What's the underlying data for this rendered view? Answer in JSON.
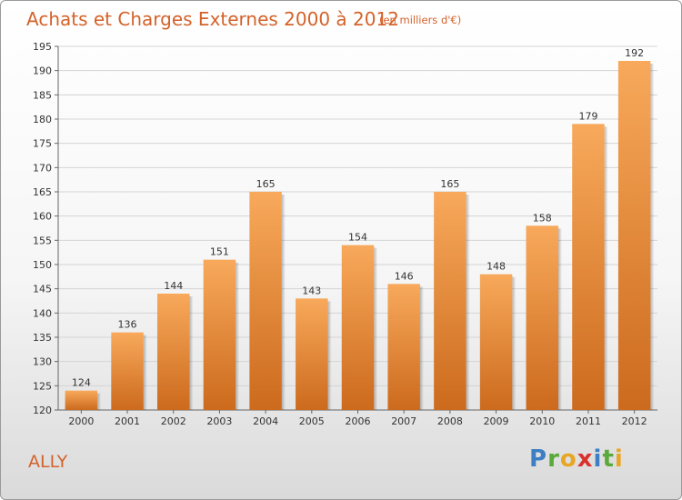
{
  "title": "Achats et Charges Externes 2000 à 2012",
  "subtitle": "(en milliers d'€)",
  "commune": "ALLY",
  "logo": {
    "letters": [
      "P",
      "r",
      "o",
      "x",
      "i",
      "t",
      "i"
    ],
    "colors": [
      "#3d7fc4",
      "#5aa93a",
      "#e8a624",
      "#d9312b",
      "#3d7fc4",
      "#5aa93a",
      "#e8a624"
    ]
  },
  "colors": {
    "accent": "#d4622a",
    "bar_top": "#f8a95b",
    "bar_bottom": "#cc6a1d",
    "grid": "#d4d4d4"
  },
  "chart_data": {
    "type": "bar",
    "categories": [
      "2000",
      "2001",
      "2002",
      "2003",
      "2004",
      "2005",
      "2006",
      "2007",
      "2008",
      "2009",
      "2010",
      "2011",
      "2012"
    ],
    "values": [
      124,
      136,
      144,
      151,
      165,
      143,
      154,
      146,
      165,
      148,
      158,
      179,
      192
    ],
    "ylim": [
      120,
      195
    ],
    "yticks": [
      120,
      125,
      130,
      135,
      140,
      145,
      150,
      155,
      160,
      165,
      170,
      175,
      180,
      185,
      190,
      195
    ],
    "grid": true,
    "legend": "none"
  }
}
